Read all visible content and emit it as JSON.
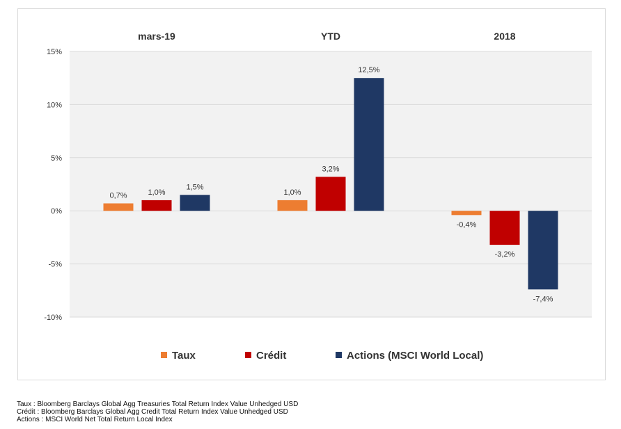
{
  "chart_data": {
    "type": "bar",
    "groups": [
      "mars-19",
      "YTD",
      "2018"
    ],
    "series": [
      {
        "name": "Taux",
        "color": "#ED7D31",
        "values": [
          0.7,
          1.0,
          -0.4
        ],
        "labels": [
          "0,7%",
          "1,0%",
          "-0,4%"
        ]
      },
      {
        "name": "Crédit",
        "color": "#C00000",
        "values": [
          1.0,
          3.2,
          -3.2
        ],
        "labels": [
          "1,0%",
          "3,2%",
          "-3,2%"
        ]
      },
      {
        "name": "Actions (MSCI World Local)",
        "color": "#1F3864",
        "values": [
          1.5,
          12.5,
          -7.4
        ],
        "labels": [
          "1,5%",
          "12,5%",
          "-7,4%"
        ]
      }
    ],
    "yticks": [
      "15%",
      "10%",
      "5%",
      "0%",
      "-5%",
      "-10%"
    ],
    "ylim": [
      -10,
      15
    ],
    "grid": true,
    "legend_position": "bottom"
  },
  "footnotes": [
    "Taux : Bloomberg Barclays Global Agg Treasuries Total Return Index Value Unhedged USD",
    "Crédit : Bloomberg Barclays Global Agg Credit Total Return Index Value Unhedged USD",
    "Actions : MSCI World Net Total Return Local Index"
  ]
}
